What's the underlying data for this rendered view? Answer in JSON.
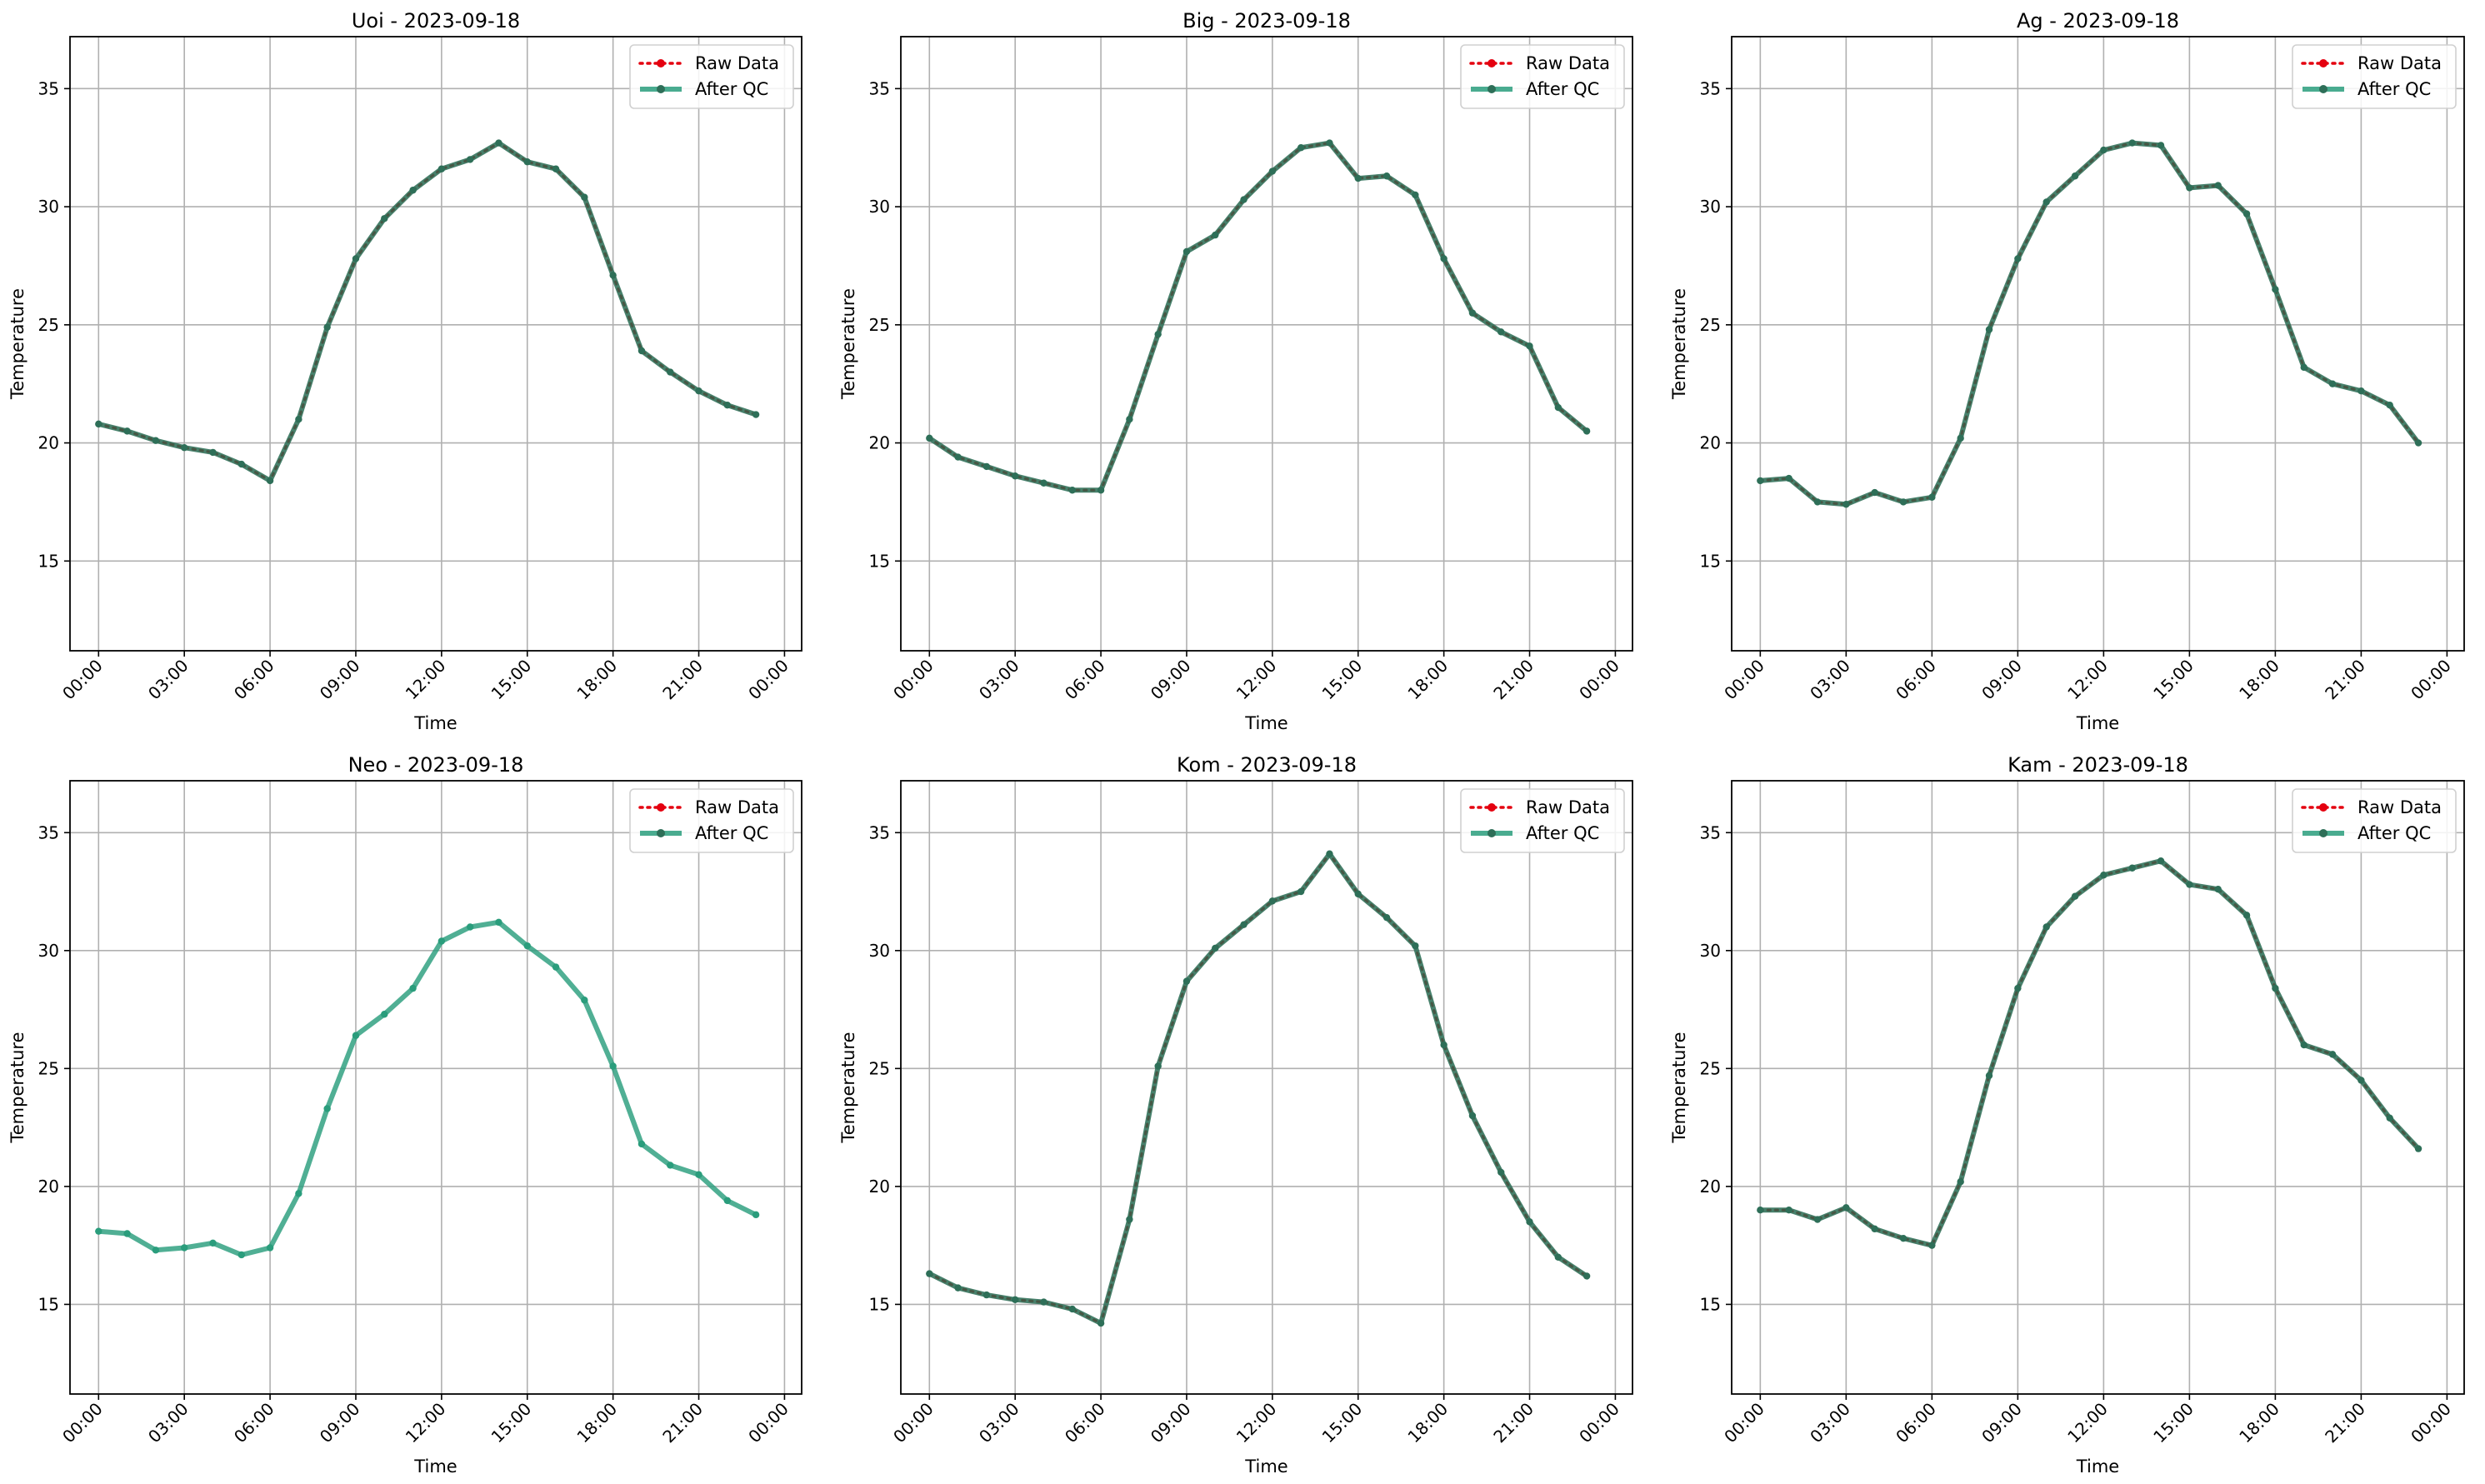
{
  "figure": {
    "shared_ylabel": "Temperature",
    "shared_xlabel": "Time",
    "x_tick_labels": [
      "00:00",
      "03:00",
      "06:00",
      "09:00",
      "12:00",
      "15:00",
      "18:00",
      "21:00",
      "00:00"
    ],
    "y_ticks": [
      15,
      20,
      25,
      30,
      35
    ],
    "legend": {
      "raw_label": "Raw Data",
      "qc_label": "After QC",
      "placement": "top-right"
    }
  },
  "colors": {
    "raw": "#e4000f",
    "qc": "#2a9d7c",
    "overlap": "#2e6f58",
    "grid": "#b0b0b0"
  },
  "chart_data": [
    {
      "type": "line",
      "title": "Uoi - 2023-09-18",
      "xlabel": "Time",
      "ylabel": "Temperature",
      "ylim": [
        11.2,
        37.2
      ],
      "xlim_hours": [
        -1.0,
        24.6
      ],
      "grid": true,
      "legend": "top-right",
      "x_hours": [
        0,
        1,
        2,
        3,
        4,
        5,
        6,
        7,
        8,
        9,
        10,
        11,
        12,
        13,
        14,
        15,
        16,
        17,
        18,
        19,
        20,
        21,
        22,
        23
      ],
      "series": [
        {
          "name": "Raw Data",
          "values": [
            20.8,
            20.5,
            20.1,
            19.8,
            19.6,
            19.1,
            18.4,
            21.0,
            24.9,
            27.8,
            29.5,
            30.7,
            31.6,
            32.0,
            32.7,
            31.9,
            31.6,
            30.4,
            27.1,
            23.9,
            23.0,
            22.2,
            21.6,
            21.2
          ]
        },
        {
          "name": "After QC",
          "values": [
            20.8,
            20.5,
            20.1,
            19.8,
            19.6,
            19.1,
            18.4,
            21.0,
            24.9,
            27.8,
            29.5,
            30.7,
            31.6,
            32.0,
            32.7,
            31.9,
            31.6,
            30.4,
            27.1,
            23.9,
            23.0,
            22.2,
            21.6,
            21.2
          ]
        }
      ]
    },
    {
      "type": "line",
      "title": "Big - 2023-09-18",
      "xlabel": "Time",
      "ylabel": "Temperature",
      "ylim": [
        11.2,
        37.2
      ],
      "xlim_hours": [
        -1.0,
        24.6
      ],
      "grid": true,
      "legend": "top-right",
      "x_hours": [
        0,
        1,
        2,
        3,
        4,
        5,
        6,
        7,
        8,
        9,
        10,
        11,
        12,
        13,
        14,
        15,
        16,
        17,
        18,
        19,
        20,
        21,
        22,
        23
      ],
      "series": [
        {
          "name": "Raw Data",
          "values": [
            20.2,
            19.4,
            19.0,
            18.6,
            18.3,
            18.0,
            18.0,
            21.0,
            24.6,
            28.1,
            28.8,
            30.3,
            31.5,
            32.5,
            32.7,
            31.2,
            31.3,
            30.5,
            27.8,
            25.5,
            24.7,
            24.1,
            21.5,
            20.5
          ]
        },
        {
          "name": "After QC",
          "values": [
            20.2,
            19.4,
            19.0,
            18.6,
            18.3,
            18.0,
            18.0,
            21.0,
            24.6,
            28.1,
            28.8,
            30.3,
            31.5,
            32.5,
            32.7,
            31.2,
            31.3,
            30.5,
            27.8,
            25.5,
            24.7,
            24.1,
            21.5,
            20.5
          ]
        }
      ]
    },
    {
      "type": "line",
      "title": "Ag - 2023-09-18",
      "xlabel": "Time",
      "ylabel": "Temperature",
      "ylim": [
        11.2,
        37.2
      ],
      "xlim_hours": [
        -1.0,
        24.6
      ],
      "grid": true,
      "legend": "top-right",
      "x_hours": [
        0,
        1,
        2,
        3,
        4,
        5,
        6,
        7,
        8,
        9,
        10,
        11,
        12,
        13,
        14,
        15,
        16,
        17,
        18,
        19,
        20,
        21,
        22,
        23
      ],
      "series": [
        {
          "name": "Raw Data",
          "values": [
            18.4,
            18.5,
            17.5,
            17.4,
            17.9,
            17.5,
            17.7,
            20.2,
            24.8,
            27.8,
            30.2,
            31.3,
            32.4,
            32.7,
            32.6,
            30.8,
            30.9,
            29.7,
            26.5,
            23.2,
            22.5,
            22.2,
            21.6,
            20.0
          ]
        },
        {
          "name": "After QC",
          "values": [
            18.4,
            18.5,
            17.5,
            17.4,
            17.9,
            17.5,
            17.7,
            20.2,
            24.8,
            27.8,
            30.2,
            31.3,
            32.4,
            32.7,
            32.6,
            30.8,
            30.9,
            29.7,
            26.5,
            23.2,
            22.5,
            22.2,
            21.6,
            20.0
          ]
        }
      ]
    },
    {
      "type": "line",
      "title": "Neo - 2023-09-18",
      "xlabel": "Time",
      "ylabel": "Temperature",
      "ylim": [
        11.2,
        37.2
      ],
      "xlim_hours": [
        -1.0,
        24.6
      ],
      "grid": true,
      "legend": "top-right",
      "x_hours": [
        0,
        1,
        2,
        3,
        4,
        5,
        6,
        7,
        8,
        9,
        10,
        11,
        12,
        13,
        14,
        15,
        16,
        17,
        18,
        19,
        20,
        21,
        22,
        23
      ],
      "series": [
        {
          "name": "Raw Data",
          "values": []
        },
        {
          "name": "After QC",
          "values": [
            18.1,
            18.0,
            17.3,
            17.4,
            17.6,
            17.1,
            17.4,
            19.7,
            23.3,
            26.4,
            27.3,
            28.4,
            30.4,
            31.0,
            31.2,
            30.2,
            29.3,
            27.9,
            25.1,
            21.8,
            20.9,
            20.5,
            19.4,
            18.8
          ]
        }
      ]
    },
    {
      "type": "line",
      "title": "Kom - 2023-09-18",
      "xlabel": "Time",
      "ylabel": "Temperature",
      "ylim": [
        11.2,
        37.2
      ],
      "xlim_hours": [
        -1.0,
        24.6
      ],
      "grid": true,
      "legend": "top-right",
      "x_hours": [
        0,
        1,
        2,
        3,
        4,
        5,
        6,
        7,
        8,
        9,
        10,
        11,
        12,
        13,
        14,
        15,
        16,
        17,
        18,
        19,
        20,
        21,
        22,
        23
      ],
      "series": [
        {
          "name": "Raw Data",
          "values": [
            16.3,
            15.7,
            15.4,
            15.2,
            15.1,
            14.8,
            14.2,
            18.6,
            25.1,
            28.7,
            30.1,
            31.1,
            32.1,
            32.5,
            34.1,
            32.4,
            31.4,
            30.2,
            26.0,
            23.0,
            20.6,
            18.5,
            17.0,
            16.2
          ]
        },
        {
          "name": "After QC",
          "values": [
            16.3,
            15.7,
            15.4,
            15.2,
            15.1,
            14.8,
            14.2,
            18.6,
            25.1,
            28.7,
            30.1,
            31.1,
            32.1,
            32.5,
            34.1,
            32.4,
            31.4,
            30.2,
            26.0,
            23.0,
            20.6,
            18.5,
            17.0,
            16.2
          ]
        }
      ]
    },
    {
      "type": "line",
      "title": "Kam - 2023-09-18",
      "xlabel": "Time",
      "ylabel": "Temperature",
      "ylim": [
        11.2,
        37.2
      ],
      "xlim_hours": [
        -1.0,
        24.6
      ],
      "grid": true,
      "legend": "top-right",
      "x_hours": [
        0,
        1,
        2,
        3,
        4,
        5,
        6,
        7,
        8,
        9,
        10,
        11,
        12,
        13,
        14,
        15,
        16,
        17,
        18,
        19,
        20,
        21,
        22,
        23
      ],
      "series": [
        {
          "name": "Raw Data",
          "values": [
            19.0,
            19.0,
            18.6,
            19.1,
            18.2,
            17.8,
            17.5,
            20.2,
            24.7,
            28.4,
            31.0,
            32.3,
            33.2,
            33.5,
            33.8,
            32.8,
            32.6,
            31.5,
            28.4,
            26.0,
            25.6,
            24.5,
            22.9,
            21.6
          ]
        },
        {
          "name": "After QC",
          "values": [
            19.0,
            19.0,
            18.6,
            19.1,
            18.2,
            17.8,
            17.5,
            20.2,
            24.7,
            28.4,
            31.0,
            32.3,
            33.2,
            33.5,
            33.8,
            32.8,
            32.6,
            31.5,
            28.4,
            26.0,
            25.6,
            24.5,
            22.9,
            21.6
          ]
        }
      ]
    }
  ]
}
